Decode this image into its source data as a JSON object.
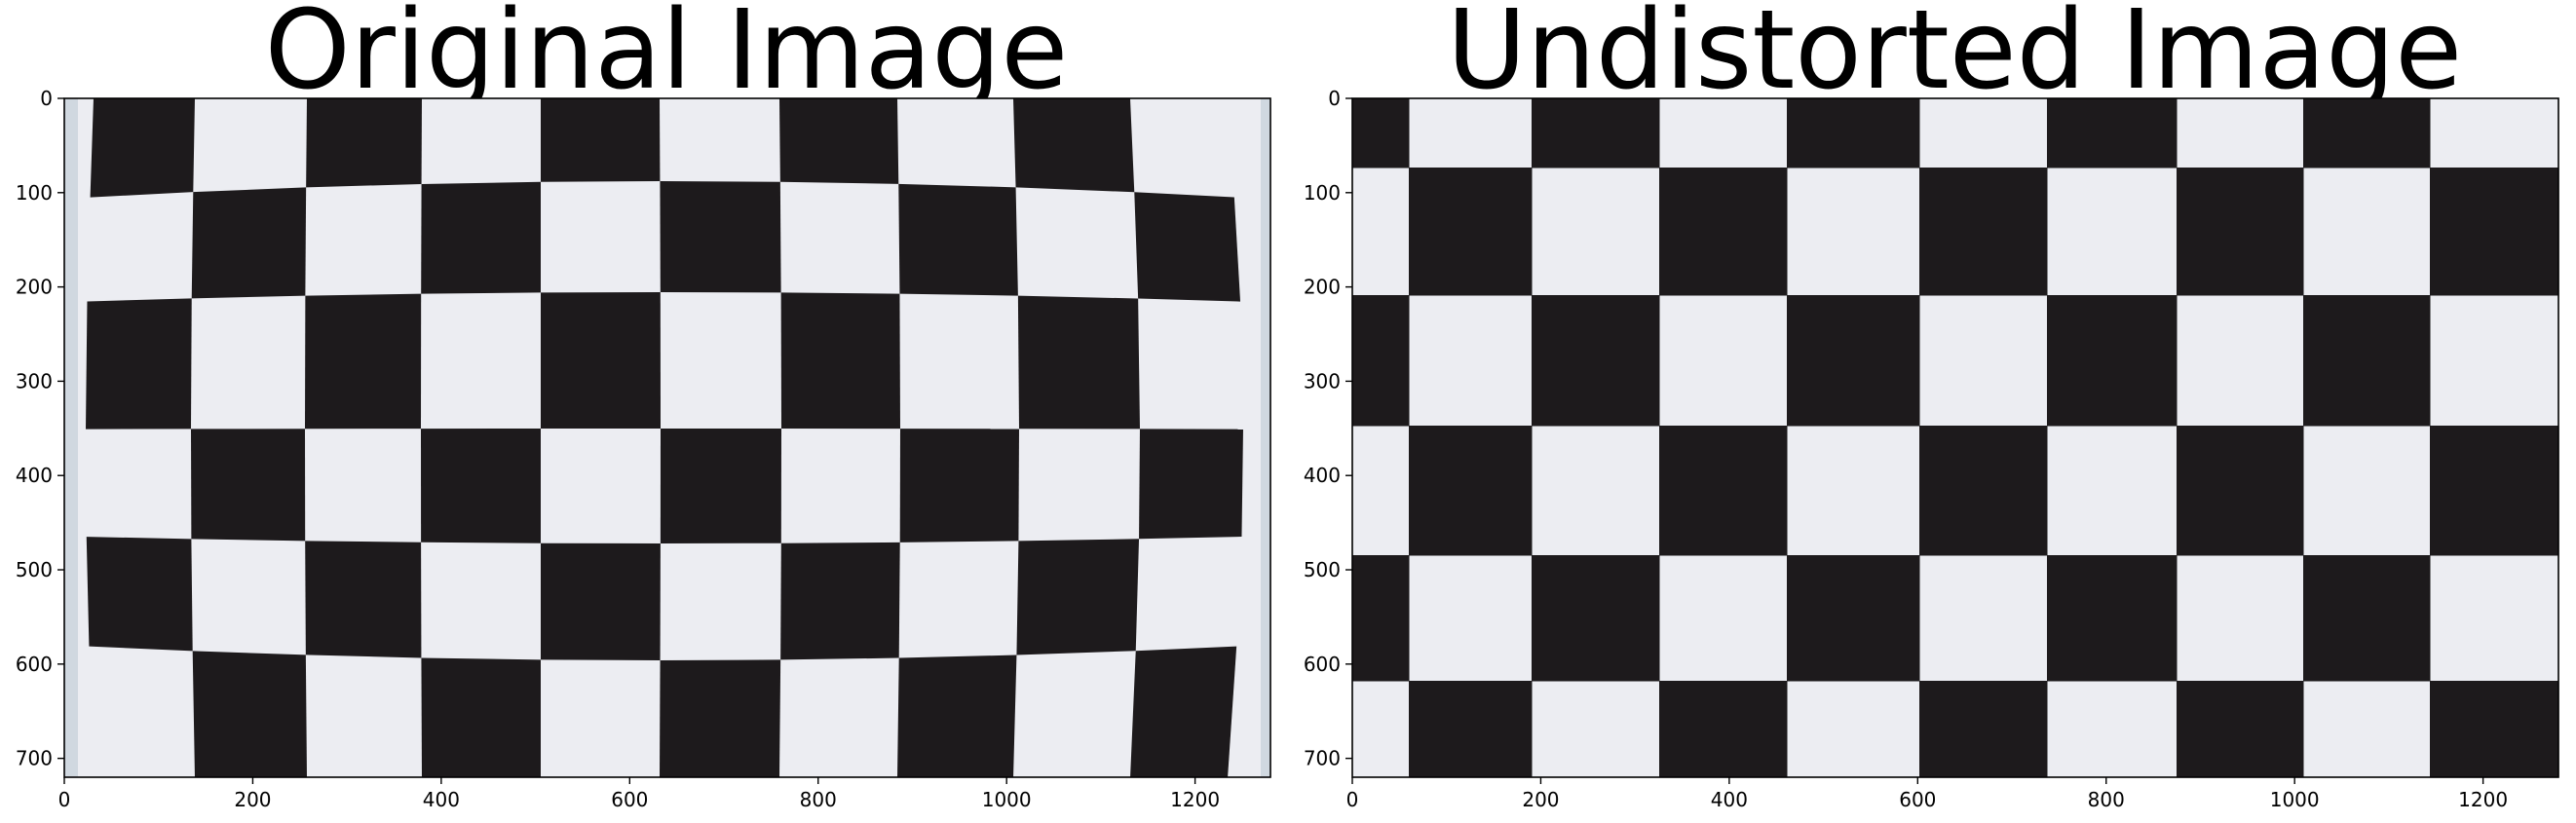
{
  "figure": {
    "panels": [
      {
        "title": "Original Image",
        "image_extent": {
          "x_max": 1280,
          "y_max": 720
        },
        "x_ticks": [
          0,
          200,
          400,
          600,
          800,
          1000,
          1200
        ],
        "y_ticks": [
          0,
          100,
          200,
          300,
          400,
          500,
          600,
          700
        ],
        "content": "chessboard-distorted-photo"
      },
      {
        "title": "Undistorted Image",
        "image_extent": {
          "x_max": 1280,
          "y_max": 720
        },
        "x_ticks": [
          0,
          200,
          400,
          600,
          800,
          1000,
          1200
        ],
        "y_ticks": [
          0,
          100,
          200,
          300,
          400,
          500,
          600,
          700
        ],
        "content": "chessboard-undistorted-photo"
      }
    ],
    "colors": {
      "dark_square": "#1d1a1c",
      "light_square": "#ecedf2",
      "border": "#000000",
      "original_edge": "#b9c7d1"
    }
  }
}
